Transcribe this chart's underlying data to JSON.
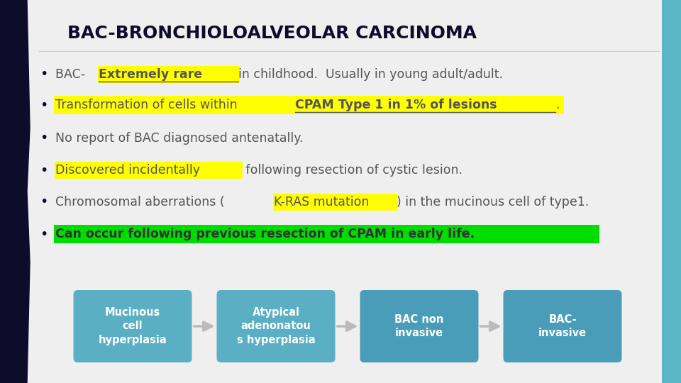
{
  "title": "BAC-BRONCHIOLOALVEOLAR CARCINOMA",
  "background_color": "#efefef",
  "left_bar_color": "#0d0d2b",
  "right_bar_color": "#5ab5c5",
  "title_color": "#0d0d2b",
  "bullet_color": "#0d0d2b",
  "bullet_points": [
    {
      "full_highlight": null,
      "text_segments": [
        {
          "text": "BAC- ",
          "bold": false,
          "highlight": null,
          "underline": false,
          "color": "#555555"
        },
        {
          "text": "Extremely rare ",
          "bold": true,
          "highlight": "#ffff00",
          "underline": true,
          "color": "#555555"
        },
        {
          "text": "in childhood.  Usually in young adult/adult.",
          "bold": false,
          "highlight": null,
          "underline": false,
          "color": "#555555"
        }
      ]
    },
    {
      "full_highlight": "#ffff00",
      "text_segments": [
        {
          "text": "Transformation of cells within ",
          "bold": false,
          "highlight": "#ffff00",
          "underline": false,
          "color": "#555555"
        },
        {
          "text": "CPAM Type 1 in 1% of lesions",
          "bold": true,
          "highlight": "#ffff00",
          "underline": true,
          "color": "#555555"
        },
        {
          "text": ".",
          "bold": false,
          "highlight": "#ffff00",
          "underline": false,
          "color": "#555555"
        }
      ]
    },
    {
      "full_highlight": null,
      "text_segments": [
        {
          "text": "No report of BAC diagnosed antenatally.",
          "bold": false,
          "highlight": null,
          "underline": false,
          "color": "#555555"
        }
      ]
    },
    {
      "full_highlight": null,
      "text_segments": [
        {
          "text": "Discovered incidentally",
          "bold": false,
          "highlight": "#ffff00",
          "underline": false,
          "color": "#555555"
        },
        {
          "text": " following resection of cystic lesion.",
          "bold": false,
          "highlight": null,
          "underline": false,
          "color": "#555555"
        }
      ]
    },
    {
      "full_highlight": null,
      "text_segments": [
        {
          "text": "Chromosomal aberrations (",
          "bold": false,
          "highlight": null,
          "underline": false,
          "color": "#555555"
        },
        {
          "text": "K-RAS mutation",
          "bold": false,
          "highlight": "#ffff00",
          "underline": false,
          "color": "#555555"
        },
        {
          "text": ") in the mucinous cell of type1.",
          "bold": false,
          "highlight": null,
          "underline": false,
          "color": "#555555"
        }
      ]
    },
    {
      "full_highlight": "#00dd00",
      "text_segments": [
        {
          "text": "Can occur following previous resection of CPAM in early life.",
          "bold": true,
          "highlight": "#00dd00",
          "underline": false,
          "color": "#333333"
        }
      ]
    }
  ],
  "flow_boxes": [
    {
      "text": "Mucinous\ncell\nhyperplasia",
      "color": "#5bafc5"
    },
    {
      "text": "Atypical\nadenonatou\ns hyperplasia",
      "color": "#5bafc5"
    },
    {
      "text": "BAC non\ninvasive",
      "color": "#4a9db8"
    },
    {
      "text": "BAC-\ninvasive",
      "color": "#4a9db8"
    }
  ],
  "arrow_color": "#bbbbbb"
}
